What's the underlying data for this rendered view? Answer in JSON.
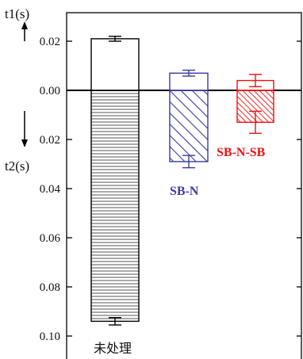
{
  "chart_data": {
    "type": "bar",
    "y_top_label": "t1(s)",
    "y_bottom_label": "t2(s)",
    "y_ticks": [
      {
        "value": 0.02,
        "label": "0.02"
      },
      {
        "value": 0.0,
        "label": "0.00"
      },
      {
        "value": -0.02,
        "label": "0.02"
      },
      {
        "value": -0.04,
        "label": "0.04"
      },
      {
        "value": -0.06,
        "label": "0.06"
      },
      {
        "value": -0.08,
        "label": "0.08"
      },
      {
        "value": -0.1,
        "label": "0.10"
      }
    ],
    "ylim": [
      -0.105,
      0.03
    ],
    "series": [
      {
        "name": "未处理",
        "color": "#000000",
        "pattern": "horizontal-lines",
        "t1": 0.021,
        "t1_err": 0.001,
        "t2": -0.094,
        "t2_err": 0.0015
      },
      {
        "name": "SB-N",
        "color": "#3a3aa6",
        "pattern": "diagonal-lines",
        "t1": 0.007,
        "t1_err": 0.0012,
        "t2": -0.029,
        "t2_err": 0.0025
      },
      {
        "name": "SB-N-SB",
        "color": "#ee1111",
        "pattern": "dense-diagonal-lines",
        "t1": 0.004,
        "t1_err": 0.0025,
        "t2": -0.013,
        "t2_err": 0.0045
      }
    ],
    "grid": false,
    "legend": "none"
  }
}
